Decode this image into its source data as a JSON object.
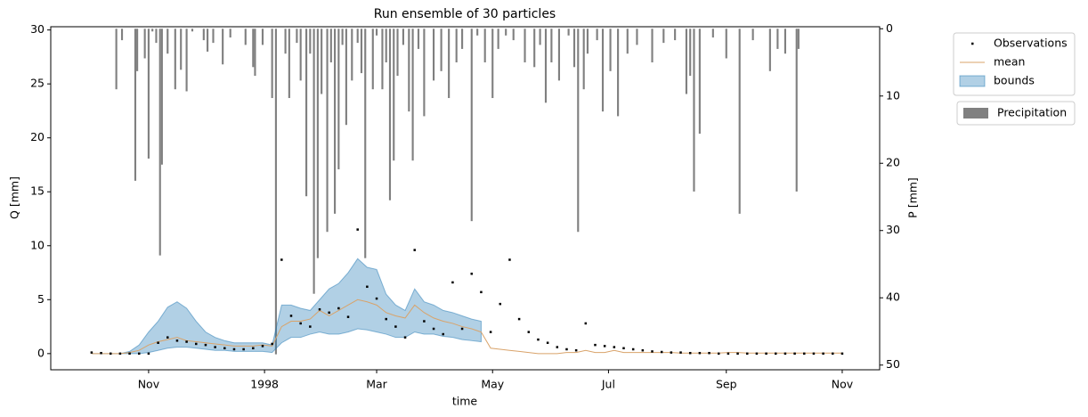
{
  "chart_data": {
    "type": "ensemble",
    "title": "Run ensemble of 30 particles",
    "xlabel": "time",
    "ylabel": "Q [mm]",
    "y2label": "P [mm]",
    "xlim": [
      -51.5,
      384.7
    ],
    "xticks": [
      {
        "value": 0,
        "label": "Nov"
      },
      {
        "value": 61,
        "label": "1998"
      },
      {
        "value": 120,
        "label": "Mar"
      },
      {
        "value": 181,
        "label": "May"
      },
      {
        "value": 242,
        "label": "Jul"
      },
      {
        "value": 304,
        "label": "Sep"
      },
      {
        "value": 365,
        "label": "Nov"
      }
    ],
    "ylim": [
      -1.5,
      30.3
    ],
    "yticks": [
      0,
      5,
      10,
      15,
      20,
      25,
      30
    ],
    "y2lim": [
      -0.3,
      50.7
    ],
    "y2ticks": [
      0,
      10,
      20,
      30,
      40,
      50
    ],
    "y2_inverted": true,
    "legend": "right",
    "series": [
      {
        "name": "Observations",
        "type": "scatter",
        "color": "#000000",
        "x": [
          -30,
          -25,
          -20,
          -15,
          -10,
          -5,
          0,
          5,
          10,
          15,
          20,
          25,
          30,
          35,
          40,
          45,
          50,
          55,
          60,
          65,
          70,
          75,
          80,
          85,
          90,
          95,
          100,
          105,
          110,
          115,
          120,
          125,
          130,
          135,
          140,
          145,
          150,
          155,
          160,
          165,
          170,
          175,
          180,
          185,
          190,
          195,
          200,
          205,
          210,
          215,
          220,
          225,
          230,
          235,
          240,
          245,
          250,
          255,
          260,
          265,
          270,
          275,
          280,
          285,
          290,
          295,
          300,
          305,
          310,
          315,
          320,
          325,
          330,
          335,
          340,
          345,
          350,
          355,
          360,
          365
        ],
        "values": [
          0.1,
          0.05,
          0,
          0,
          0,
          0,
          0,
          1.0,
          1.5,
          1.2,
          1.1,
          0.9,
          0.8,
          0.6,
          0.5,
          0.4,
          0.4,
          0.5,
          0.7,
          0.9,
          8.7,
          3.5,
          2.8,
          2.5,
          4.1,
          3.8,
          4.2,
          3.4,
          11.5,
          6.2,
          5.1,
          3.2,
          2.5,
          1.5,
          9.6,
          3.0,
          2.3,
          1.8,
          6.6,
          2.3,
          7.4,
          5.7,
          2.0,
          4.6,
          8.7,
          3.2,
          2.0,
          1.3,
          1.0,
          0.6,
          0.4,
          0.3,
          2.8,
          0.8,
          0.7,
          0.6,
          0.5,
          0.4,
          0.3,
          0.2,
          0.15,
          0.1,
          0.1,
          0.05,
          0.05,
          0.05,
          0,
          0,
          0,
          0,
          0,
          0,
          0,
          0,
          0,
          0,
          0,
          0,
          0,
          0
        ]
      },
      {
        "name": "mean",
        "type": "line",
        "color": "#d9a36a",
        "x": [
          -30,
          -25,
          -20,
          -15,
          -10,
          -5,
          0,
          5,
          10,
          15,
          20,
          25,
          30,
          35,
          40,
          45,
          50,
          55,
          60,
          65,
          70,
          75,
          80,
          85,
          90,
          95,
          100,
          105,
          110,
          115,
          120,
          125,
          130,
          135,
          140,
          145,
          150,
          155,
          160,
          165,
          170,
          175,
          180,
          185,
          190,
          195,
          200,
          205,
          210,
          215,
          220,
          225,
          230,
          235,
          240,
          245,
          250,
          255,
          260,
          265,
          270,
          275,
          280,
          285,
          290,
          295,
          300,
          305,
          310,
          315,
          320,
          325,
          330,
          335,
          340,
          345,
          350,
          355,
          360,
          365
        ],
        "values": [
          0,
          0,
          0,
          0,
          0.1,
          0.3,
          0.8,
          1.1,
          1.3,
          1.5,
          1.2,
          1.1,
          1.0,
          0.9,
          0.8,
          0.7,
          0.7,
          0.7,
          0.8,
          0.7,
          2.5,
          3.0,
          3.0,
          3.2,
          4.0,
          3.5,
          4.0,
          4.5,
          5.0,
          4.8,
          4.5,
          3.8,
          3.5,
          3.3,
          4.5,
          3.8,
          3.3,
          3.0,
          2.8,
          2.5,
          2.3,
          2.0,
          0.5,
          0.4,
          0.3,
          0.2,
          0.1,
          0,
          0,
          0,
          0.1,
          0.1,
          0.3,
          0.1,
          0.1,
          0.3,
          0.1,
          0.1,
          0.1,
          0.1,
          0.1,
          0.1,
          0.05,
          0.05,
          0.05,
          0.05,
          0.05,
          0.1,
          0.1,
          0.05,
          0.05,
          0.05,
          0.05,
          0.05,
          0.05,
          0.05,
          0.05,
          0.05,
          0.05,
          0.05
        ]
      },
      {
        "name": "bounds",
        "type": "band",
        "color": "#1f77b4",
        "x": [
          -30,
          -25,
          -20,
          -15,
          -10,
          -5,
          0,
          5,
          10,
          15,
          20,
          25,
          30,
          35,
          40,
          45,
          50,
          55,
          60,
          65,
          70,
          75,
          80,
          85,
          90,
          95,
          100,
          105,
          110,
          115,
          120,
          125,
          130,
          135,
          140,
          145,
          150,
          155,
          160,
          165,
          170,
          175
        ],
        "lower": [
          0,
          0,
          0,
          0,
          0,
          0,
          0.1,
          0.3,
          0.5,
          0.6,
          0.6,
          0.5,
          0.4,
          0.3,
          0.3,
          0.2,
          0.2,
          0.2,
          0.2,
          0.1,
          1.0,
          1.5,
          1.5,
          1.8,
          2.0,
          1.8,
          1.8,
          2.0,
          2.3,
          2.2,
          2.0,
          1.8,
          1.5,
          1.5,
          2.0,
          1.8,
          1.8,
          1.6,
          1.5,
          1.3,
          1.2,
          1.1
        ],
        "upper": [
          0,
          0,
          0,
          0,
          0.2,
          0.8,
          2.0,
          3.0,
          4.3,
          4.8,
          4.2,
          3.0,
          2.0,
          1.5,
          1.2,
          1.0,
          1.0,
          1.0,
          1.0,
          0.8,
          4.5,
          4.5,
          4.2,
          4.0,
          5.0,
          6.0,
          6.5,
          7.5,
          8.8,
          8.0,
          7.8,
          5.5,
          4.5,
          4.0,
          6.0,
          4.8,
          4.5,
          4.0,
          3.8,
          3.5,
          3.2,
          3.0
        ]
      },
      {
        "name": "Precipitation",
        "type": "bar",
        "color": "#808080",
        "axis": "y2",
        "x": [
          -17,
          -14,
          -7,
          -6,
          -2,
          0,
          2,
          4,
          6,
          7,
          10,
          14,
          17,
          20,
          23,
          29,
          31,
          34,
          39,
          43,
          51,
          55,
          56,
          60,
          65,
          67,
          72,
          74,
          78,
          80,
          83,
          85,
          87,
          89,
          91,
          94,
          96,
          98,
          100,
          102,
          104,
          107,
          110,
          112,
          114,
          118,
          120,
          123,
          125,
          127,
          129,
          131,
          134,
          137,
          139,
          142,
          145,
          150,
          154,
          158,
          162,
          165,
          170,
          173,
          177,
          181,
          184,
          188,
          192,
          198,
          203,
          206,
          209,
          212,
          216,
          221,
          224,
          226,
          229,
          231,
          236,
          239,
          243,
          247,
          252,
          257,
          265,
          271,
          277,
          283,
          285,
          287,
          290,
          297,
          304,
          311,
          318,
          327,
          331,
          335,
          341,
          342
        ],
        "values": [
          9,
          1.7,
          22.6,
          6.3,
          4.4,
          19.3,
          0.4,
          2.1,
          33.7,
          20.2,
          3.7,
          9,
          6.1,
          9.3,
          0.4,
          1.7,
          3.4,
          2.1,
          5.3,
          1.3,
          2.4,
          5.7,
          7,
          2.4,
          10.3,
          48.4,
          3.7,
          10.3,
          2.1,
          7.7,
          24.9,
          3.7,
          39.4,
          34.1,
          9.7,
          30.2,
          5,
          27.5,
          20.9,
          2.4,
          14.3,
          7.7,
          2.1,
          6.6,
          34.1,
          9,
          1,
          9,
          5,
          25.5,
          19.6,
          7,
          2.4,
          12.3,
          19.6,
          3,
          13,
          7.7,
          6.3,
          10.3,
          5,
          3,
          28.6,
          1,
          5,
          10.3,
          3,
          1,
          1.7,
          5,
          5.7,
          2.4,
          11,
          5,
          7.7,
          1,
          5.7,
          30.2,
          9,
          3.7,
          1.7,
          12.3,
          6.3,
          13,
          3.7,
          2.4,
          5,
          2.1,
          1.7,
          9.7,
          7,
          24.2,
          15.6,
          1.3,
          4.4,
          27.5,
          1.7,
          6.3,
          3,
          3.7,
          24.2,
          3
        ]
      }
    ]
  }
}
